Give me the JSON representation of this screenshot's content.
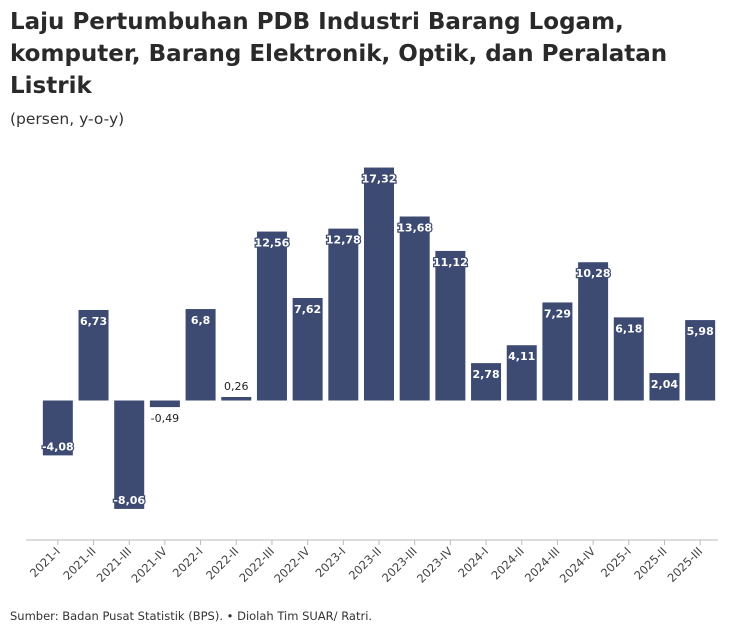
{
  "header": {
    "title": "Laju Pertumbuhan PDB Industri Barang Logam, komputer, Barang Elektronik, Optik, dan Peralatan Listrik",
    "subtitle": "(persen, y-o-y)"
  },
  "footer": {
    "source": "Sumber: Badan Pusat Statistik (BPS). • Diolah Tim SUAR/ Ratri."
  },
  "colors": {
    "bar": "#3d4b73",
    "label_text": "#ffffff",
    "outside_label_text": "#222222",
    "axis": "#bbbbbb",
    "tick_text": "#444444"
  },
  "chart_data": {
    "type": "bar",
    "title": "Laju Pertumbuhan PDB Industri Barang Logam, komputer, Barang Elektronik, Optik, dan Peralatan Listrik",
    "subtitle": "(persen, y-o-y)",
    "xlabel": "",
    "ylabel": "",
    "grid": false,
    "legend": "none",
    "ylim": [
      -9.5,
      18.5
    ],
    "categories": [
      "2021-I",
      "2021-II",
      "2021-III",
      "2021-IV",
      "2022-I",
      "2022-II",
      "2022-III",
      "2022-IV",
      "2023-I",
      "2023-II",
      "2023-III",
      "2023-IV",
      "2024-I",
      "2024-II",
      "2024-III",
      "2024-IV",
      "2025-I",
      "2025-II",
      "2025-III"
    ],
    "values": [
      -4.08,
      6.73,
      -8.06,
      -0.49,
      6.8,
      0.26,
      12.56,
      7.62,
      12.78,
      17.32,
      13.68,
      11.12,
      2.78,
      4.11,
      7.29,
      10.28,
      6.18,
      2.04,
      5.98
    ],
    "data_labels": [
      "-4,08",
      "6,73",
      "-8,06",
      "-0,49",
      "6,8",
      "0,26",
      "12,56",
      "7,62",
      "12,78",
      "17,32",
      "13,68",
      "11,12",
      "2,78",
      "4,11",
      "7,29",
      "10,28",
      "6,18",
      "2,04",
      "5,98"
    ]
  }
}
